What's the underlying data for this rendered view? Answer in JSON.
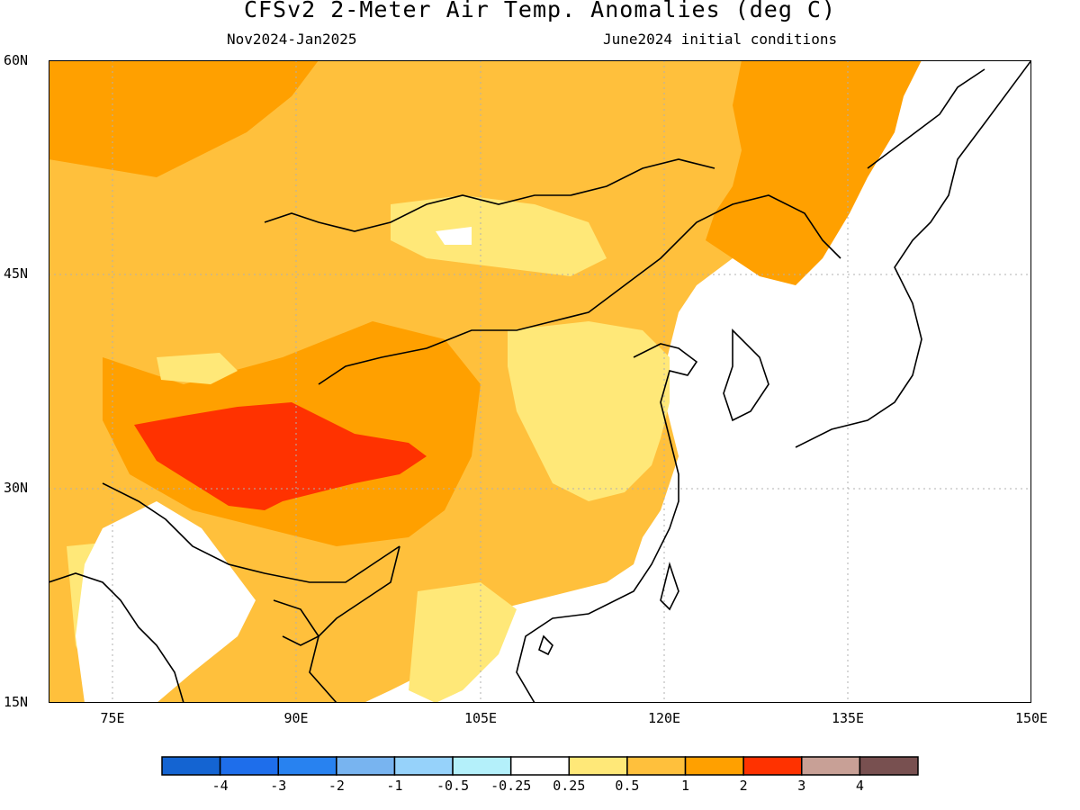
{
  "title": "CFSv2 2-Meter Air Temp. Anomalies (deg C)",
  "subtitle_left": "Nov2024-Jan2025",
  "subtitle_right": "June2024 initial conditions",
  "lat_labels": [
    "60N",
    "45N",
    "30N",
    "15N"
  ],
  "lon_labels": [
    "75E",
    "90E",
    "105E",
    "120E",
    "135E",
    "150E"
  ],
  "colorbar": {
    "colors": [
      "#1464d2",
      "#1e6eeb",
      "#2882f0",
      "#78b4f0",
      "#96d2fa",
      "#b4f0fa",
      "#ffffff",
      "#ffe878",
      "#ffc03c",
      "#ffa000",
      "#ff3200",
      "#c8a096",
      "#785050"
    ],
    "labels": [
      "-4",
      "-3",
      "-2",
      "-1",
      "-0.5",
      "-0.25",
      "0.25",
      "0.5",
      "1",
      "2",
      "3",
      "4"
    ]
  },
  "map": {
    "extent_lon": [
      70,
      150
    ],
    "extent_lat": [
      15,
      60
    ],
    "anomaly_regions": [
      {
        "level": "1",
        "color": "#ffc03c"
      },
      {
        "level": "2",
        "color": "#ffa000"
      },
      {
        "level": "0.5",
        "color": "#ffe878"
      },
      {
        "level": "3",
        "color": "#ff3200"
      }
    ]
  }
}
